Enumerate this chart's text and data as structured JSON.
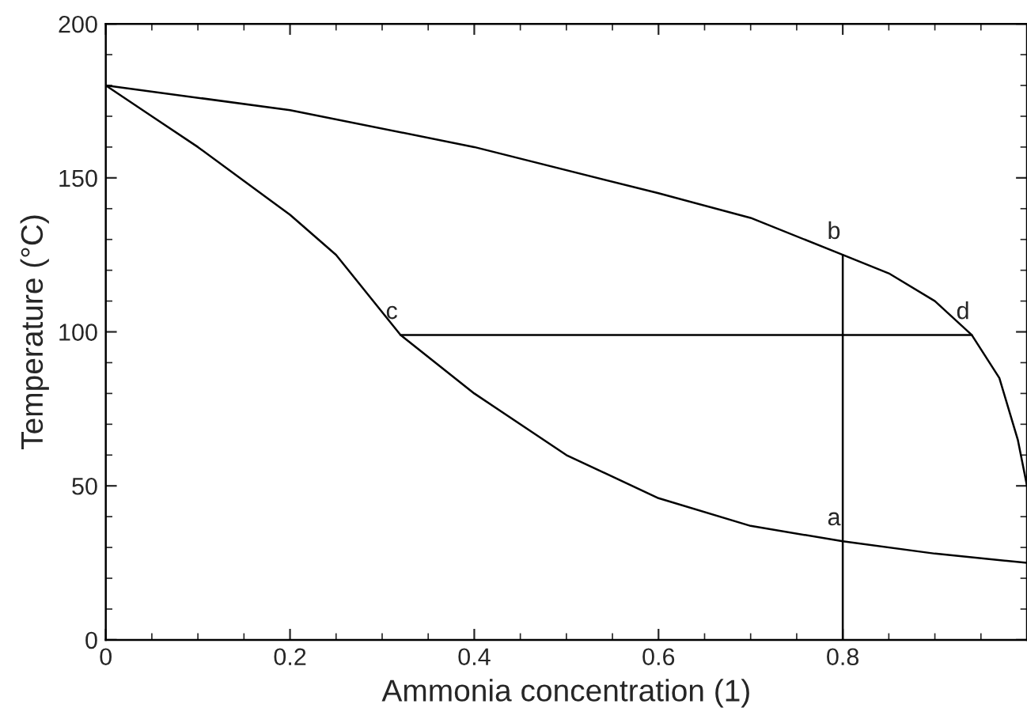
{
  "chart_data": {
    "type": "line",
    "xlabel": "Ammonia concentration (1)",
    "ylabel": "Temperature (°C)",
    "xlim": [
      0,
      1
    ],
    "ylim": [
      0,
      200
    ],
    "xticks": [
      0,
      0.2,
      0.4,
      0.6,
      0.8
    ],
    "yticks": [
      0,
      50,
      100,
      150,
      200
    ],
    "grid": false,
    "legend": false,
    "marker": "none",
    "line_style": "solid",
    "series": [
      {
        "color": "#000000",
        "x": [
          0,
          0.05,
          0.1,
          0.15,
          0.2,
          0.25,
          0.32,
          0.4,
          0.5,
          0.6,
          0.7,
          0.8,
          0.9,
          1.0
        ],
        "values": [
          180,
          170,
          160,
          149,
          138,
          125,
          99,
          80,
          60,
          46,
          37,
          32,
          28,
          25
        ]
      },
      {
        "color": "#000000",
        "x": [
          0,
          0.2,
          0.4,
          0.6,
          0.7,
          0.8,
          0.85,
          0.9,
          0.94,
          0.97,
          0.99,
          1.0
        ],
        "values": [
          180,
          172,
          160,
          145,
          137,
          125,
          119,
          110,
          99,
          85,
          65,
          50
        ]
      },
      {
        "color": "#000000",
        "x": [
          0.32,
          0.94
        ],
        "values": [
          99,
          99
        ]
      },
      {
        "color": "#000000",
        "x": [
          0.8,
          0.8
        ],
        "values": [
          0,
          125
        ]
      }
    ],
    "annotations": [
      {
        "text": "a",
        "x": 0.8,
        "y": 32
      },
      {
        "text": "b",
        "x": 0.8,
        "y": 125
      },
      {
        "text": "c",
        "x": 0.32,
        "y": 99
      },
      {
        "text": "d",
        "x": 0.94,
        "y": 99
      }
    ]
  }
}
